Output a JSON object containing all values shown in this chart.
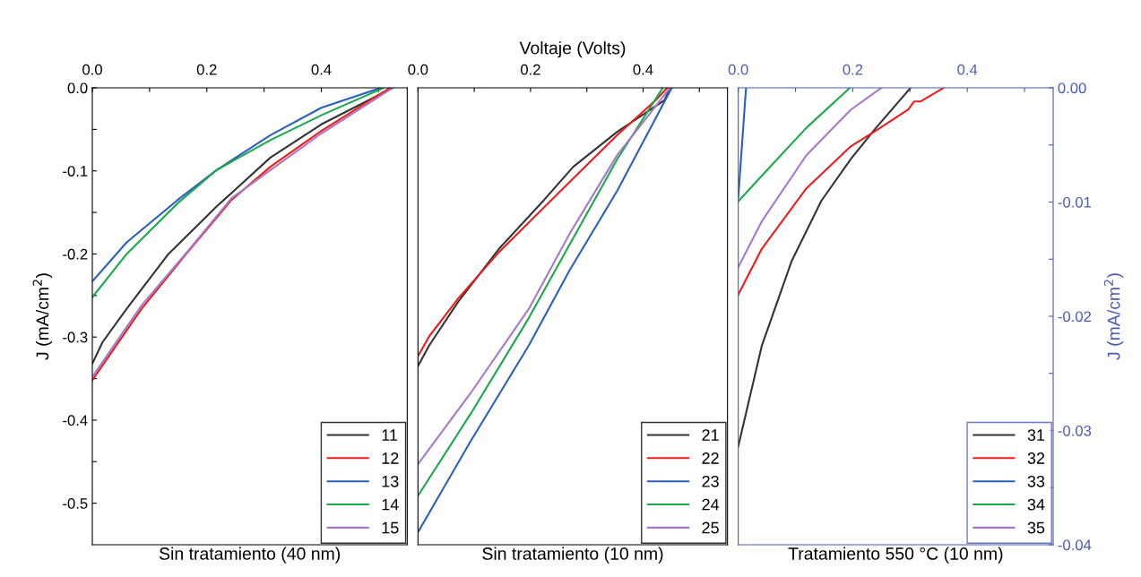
{
  "chart_data": [
    {
      "type": "line",
      "title": "Sin tratamiento (40 nm)",
      "ylabel": "J (mA/cm$^{2}$)",
      "xlim": [
        0,
        0.55
      ],
      "ylim": [
        -0.55,
        0
      ],
      "xticks": [
        {
          "value": 0,
          "label": "0.0"
        },
        {
          "value": 0.1,
          "label": null
        },
        {
          "value": 0.2,
          "label": "0.2"
        },
        {
          "value": 0.3,
          "label": null
        },
        {
          "value": 0.4,
          "label": "0.4"
        },
        {
          "value": 0.5,
          "label": null
        }
      ],
      "yticks": [
        {
          "value": 0,
          "label": "0.0"
        },
        {
          "value": -0.05,
          "label": null
        },
        {
          "value": -0.1,
          "label": "-0.1"
        },
        {
          "value": -0.15,
          "label": null
        },
        {
          "value": -0.2,
          "label": "-0.2"
        },
        {
          "value": -0.25,
          "label": null
        },
        {
          "value": -0.3,
          "label": "-0.3"
        },
        {
          "value": -0.35,
          "label": null
        },
        {
          "value": -0.4,
          "label": "-0.4"
        },
        {
          "value": -0.45,
          "label": null
        },
        {
          "value": -0.5,
          "label": "-0.5"
        }
      ],
      "legend": "bottom right",
      "grid": false,
      "series": [
        {
          "name": "11",
          "color": "#333333",
          "x": [
            0,
            0.018,
            0.06,
            0.133,
            0.217,
            0.311,
            0.4,
            0.525
          ],
          "values": [
            -0.332,
            -0.306,
            -0.266,
            -0.2,
            -0.143,
            -0.084,
            -0.044,
            0
          ]
        },
        {
          "name": "12",
          "color": "#ee1c1c",
          "x": [
            0,
            0.086,
            0.164,
            0.243,
            0.311,
            0.4,
            0.52
          ],
          "values": [
            -0.352,
            -0.266,
            -0.2,
            -0.135,
            -0.095,
            -0.052,
            0
          ]
        },
        {
          "name": "13",
          "color": "#2a5fc0",
          "x": [
            0,
            0.06,
            0.149,
            0.217,
            0.311,
            0.4,
            0.504
          ],
          "values": [
            -0.233,
            -0.186,
            -0.135,
            -0.099,
            -0.057,
            -0.024,
            0
          ]
        },
        {
          "name": "14",
          "color": "#1aa84a",
          "x": [
            0,
            0.06,
            0.149,
            0.217,
            0.311,
            0.4,
            0.509
          ],
          "values": [
            -0.252,
            -0.2,
            -0.139,
            -0.099,
            -0.063,
            -0.033,
            0
          ]
        },
        {
          "name": "15",
          "color": "#a578c8",
          "x": [
            0,
            0.086,
            0.164,
            0.243,
            0.311,
            0.4,
            0.525
          ],
          "values": [
            -0.348,
            -0.262,
            -0.199,
            -0.133,
            -0.099,
            -0.055,
            0
          ]
        }
      ]
    },
    {
      "type": "line",
      "title": "Sin tratamiento (10 nm)",
      "xlabel": "Voltaje (Volts)",
      "xlim": [
        0,
        0.55
      ],
      "ylim": [
        -0.55,
        0
      ],
      "tick_labels": "x",
      "xticks": [
        {
          "value": 0,
          "label": "0.0"
        },
        {
          "value": 0.1,
          "label": null
        },
        {
          "value": 0.2,
          "label": "0.2"
        },
        {
          "value": 0.3,
          "label": null
        },
        {
          "value": 0.4,
          "label": "0.4"
        },
        {
          "value": 0.5,
          "label": null
        }
      ],
      "legend": "bottom right",
      "grid": false,
      "series": [
        {
          "name": "21",
          "color": "#333333",
          "x": [
            0,
            0.02,
            0.072,
            0.145,
            0.224,
            0.276,
            0.354,
            0.438,
            0.448
          ],
          "values": [
            -0.335,
            -0.31,
            -0.257,
            -0.193,
            -0.135,
            -0.095,
            -0.053,
            -0.015,
            0
          ]
        },
        {
          "name": "22",
          "color": "#ee1c1c",
          "x": [
            0,
            0.02,
            0.072,
            0.145,
            0.27,
            0.354,
            0.422,
            0.443
          ],
          "values": [
            -0.323,
            -0.299,
            -0.253,
            -0.197,
            -0.113,
            -0.057,
            -0.015,
            0
          ]
        },
        {
          "name": "23",
          "color": "#2a5fc0",
          "x": [
            0,
            0.093,
            0.197,
            0.27,
            0.354,
            0.451
          ],
          "values": [
            -0.535,
            -0.426,
            -0.31,
            -0.219,
            -0.124,
            0
          ]
        },
        {
          "name": "24",
          "color": "#1aa84a",
          "x": [
            0,
            0.093,
            0.197,
            0.27,
            0.354,
            0.435
          ],
          "values": [
            -0.491,
            -0.393,
            -0.277,
            -0.188,
            -0.086,
            0
          ]
        },
        {
          "name": "25",
          "color": "#a578c8",
          "x": [
            0,
            0.093,
            0.197,
            0.27,
            0.354,
            0.448
          ],
          "values": [
            -0.453,
            -0.368,
            -0.266,
            -0.175,
            -0.081,
            0
          ]
        }
      ]
    },
    {
      "type": "line",
      "title": "Tratamiento 550 °C (10 nm)",
      "y2label": "J (mA/cm$^{2}$)",
      "xlim": [
        0,
        0.55
      ],
      "y2lim": [
        -0.04,
        0
      ],
      "xticks": [
        {
          "value": 0,
          "label": "0.0"
        },
        {
          "value": 0.1,
          "label": null
        },
        {
          "value": 0.2,
          "label": "0.2"
        },
        {
          "value": 0.3,
          "label": null
        },
        {
          "value": 0.4,
          "label": "0.4"
        },
        {
          "value": 0.5,
          "label": null
        }
      ],
      "y2ticks": [
        {
          "value": 0,
          "label": "0.00"
        },
        {
          "value": -0.005,
          "label": null
        },
        {
          "value": -0.01,
          "label": "-0.01"
        },
        {
          "value": -0.015,
          "label": null
        },
        {
          "value": -0.02,
          "label": "-0.02"
        },
        {
          "value": -0.025,
          "label": null
        },
        {
          "value": -0.03,
          "label": "-0.03"
        },
        {
          "value": -0.035,
          "label": null
        },
        {
          "value": -0.04,
          "label": "-0.04"
        }
      ],
      "legend": "bottom right",
      "grid": false,
      "series": [
        {
          "name": "31",
          "color": "#333333",
          "axis": "y2",
          "x": [
            0,
            0.041,
            0.093,
            0.145,
            0.197,
            0.239,
            0.301
          ],
          "values": [
            -0.0314,
            -0.0226,
            -0.0152,
            -0.0099,
            -0.0062,
            -0.0036,
            0
          ]
        },
        {
          "name": "32",
          "color": "#ee1c1c",
          "axis": "y2",
          "x": [
            0,
            0.041,
            0.119,
            0.197,
            0.239,
            0.297,
            0.307,
            0.318,
            0.359
          ],
          "values": [
            -0.0181,
            -0.0141,
            -0.0088,
            -0.0051,
            -0.0038,
            -0.0019,
            -0.0012,
            -0.0012,
            0
          ]
        },
        {
          "name": "33",
          "color": "#2a5fc0",
          "axis": "y2",
          "x": [
            0,
            0.0136
          ],
          "values": [
            -0.0096,
            0
          ]
        },
        {
          "name": "34",
          "color": "#1aa84a",
          "axis": "y2",
          "x": [
            0,
            0.041,
            0.119,
            0.195
          ],
          "values": [
            -0.00995,
            -0.0077,
            -0.0035,
            0
          ]
        },
        {
          "name": "35",
          "color": "#a578c8",
          "axis": "y2",
          "x": [
            0,
            0.041,
            0.119,
            0.197,
            0.25
          ],
          "values": [
            -0.0157,
            -0.0117,
            -0.0059,
            -0.0019,
            0
          ]
        }
      ]
    }
  ]
}
